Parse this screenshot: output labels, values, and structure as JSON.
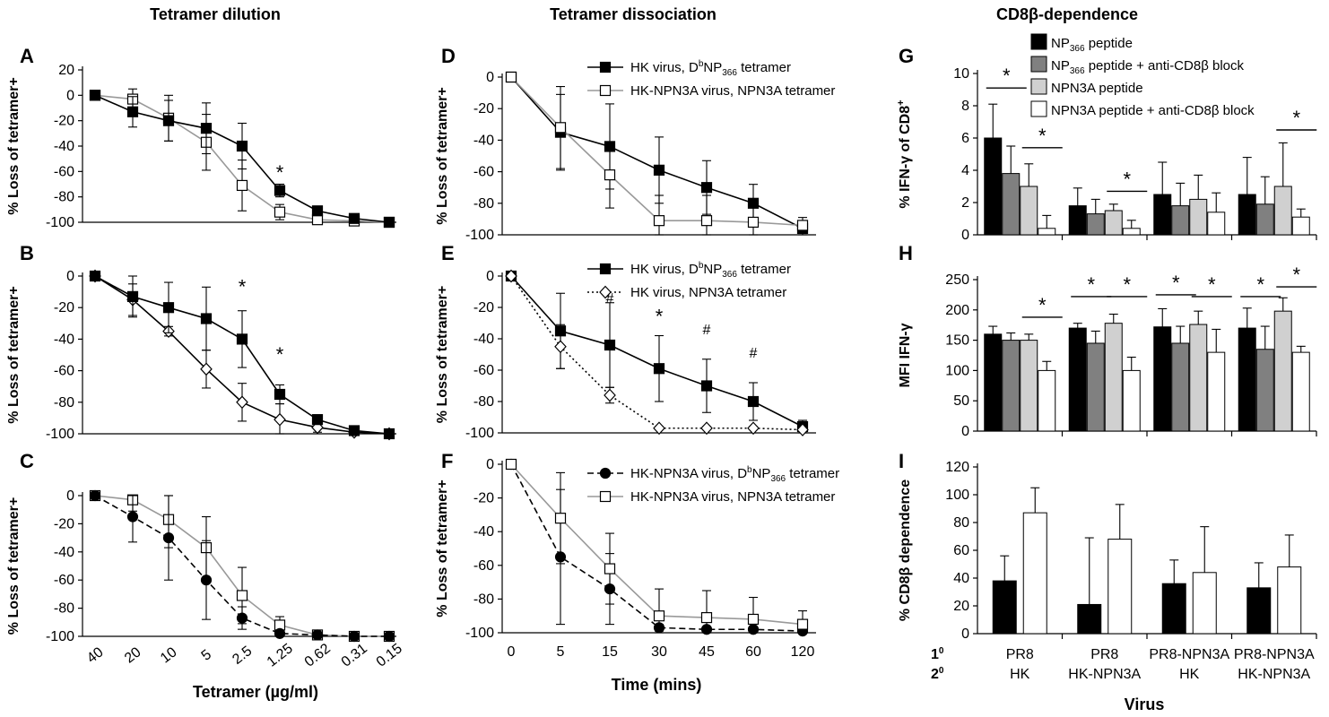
{
  "headers": {
    "tetramer_dilution": "Tetramer dilution",
    "tetramer_dissociation": "Tetramer dissociation",
    "cd8b_dependence": "CD8β-dependence"
  },
  "series_styles": {
    "black_square": {
      "fill": "#000000",
      "stroke": "#000000",
      "marker": "square",
      "line": "solid"
    },
    "white_square_grey": {
      "fill": "#ffffff",
      "stroke": "#000000",
      "marker": "square",
      "line": "solid",
      "line_color": "#999999"
    },
    "white_diamond": {
      "fill": "#ffffff",
      "stroke": "#000000",
      "marker": "diamond",
      "line": "solid"
    },
    "white_diamond_dotted": {
      "fill": "#ffffff",
      "stroke": "#000000",
      "marker": "diamond",
      "line": "dotted"
    },
    "black_circle_dashed": {
      "fill": "#000000",
      "stroke": "#000000",
      "marker": "circle",
      "line": "dashed"
    }
  },
  "chart_data": [
    {
      "id": "A",
      "type": "line",
      "panel_label": "A",
      "ylabel": "% Loss of tetramer+",
      "ylim": [
        -100,
        20
      ],
      "yticks": [
        20,
        0,
        -20,
        -40,
        -60,
        -80,
        -100
      ],
      "categories": [
        "40",
        "20",
        "10",
        "5",
        "2.5",
        "1.25",
        "0.62",
        "0.31",
        "0.15"
      ],
      "series": [
        {
          "style": "white_square_grey",
          "values": [
            0,
            -3,
            -18,
            -37,
            -71,
            -92,
            -98,
            -99,
            -100
          ],
          "err": [
            0,
            8,
            18,
            22,
            20,
            6,
            2,
            1,
            0
          ]
        },
        {
          "style": "black_square",
          "values": [
            0,
            -13,
            -20,
            -26,
            -40,
            -75,
            -91,
            -97,
            -100
          ],
          "err": [
            0,
            12,
            16,
            20,
            18,
            5,
            3,
            2,
            0
          ]
        }
      ],
      "annotations": [
        {
          "text": "*",
          "x_index": 5,
          "y": -66
        }
      ]
    },
    {
      "id": "B",
      "type": "line",
      "panel_label": "B",
      "ylabel": "% Loss of tetramer+",
      "ylim": [
        -100,
        0
      ],
      "yticks": [
        0,
        -20,
        -40,
        -60,
        -80,
        -100
      ],
      "categories": [
        "40",
        "20",
        "10",
        "5",
        "2.5",
        "1.25",
        "0.62",
        "0.31",
        "0.15"
      ],
      "series": [
        {
          "style": "white_diamond",
          "values": [
            0,
            -15,
            -35,
            -59,
            -80,
            -91,
            -96,
            -99,
            -100
          ],
          "err": [
            0,
            10,
            3,
            12,
            12,
            10,
            3,
            1,
            0
          ]
        },
        {
          "style": "black_square",
          "values": [
            0,
            -13,
            -20,
            -27,
            -40,
            -75,
            -91,
            -98,
            -100
          ],
          "err": [
            0,
            13,
            16,
            20,
            18,
            6,
            3,
            1,
            0
          ]
        }
      ],
      "annotations": [
        {
          "text": "*",
          "x_index": 4,
          "y": -11
        },
        {
          "text": "*",
          "x_index": 5,
          "y": -54
        }
      ]
    },
    {
      "id": "C",
      "type": "line",
      "panel_label": "C",
      "ylabel": "% Loss of tetramer+",
      "ylim": [
        -100,
        0
      ],
      "yticks": [
        0,
        -20,
        -40,
        -60,
        -80,
        -100
      ],
      "categories": [
        "40",
        "20",
        "10",
        "5",
        "2.5",
        "1.25",
        "0.62",
        "0.31",
        "0.15"
      ],
      "xlabel": "Tetramer (µg/ml)",
      "series": [
        {
          "style": "white_square_grey",
          "values": [
            0,
            -3,
            -17,
            -37,
            -71,
            -92,
            -99,
            -100,
            -100
          ],
          "err": [
            0,
            8,
            20,
            22,
            20,
            6,
            2,
            1,
            0
          ]
        },
        {
          "style": "black_circle_dashed",
          "values": [
            0,
            -15,
            -30,
            -60,
            -87,
            -98,
            -99,
            -100,
            -100
          ],
          "err": [
            0,
            18,
            30,
            28,
            8,
            2,
            1,
            0,
            0
          ]
        }
      ]
    },
    {
      "id": "D",
      "type": "line",
      "panel_label": "D",
      "ylabel": "% Loss of tetramer+",
      "ylim": [
        -100,
        0
      ],
      "yticks": [
        0,
        -20,
        -40,
        -60,
        -80,
        -100
      ],
      "categories": [
        "0",
        "5",
        "15",
        "30",
        "45",
        "60",
        "120"
      ],
      "series": [
        {
          "style": "black_square",
          "name": "HK virus, DbNP366 tetramer",
          "values": [
            0,
            -35,
            -44,
            -59,
            -70,
            -80,
            -96
          ],
          "err": [
            0,
            24,
            27,
            21,
            17,
            12,
            4
          ]
        },
        {
          "style": "white_square_grey",
          "name": "HK-NPN3A virus, NPN3A tetramer",
          "values": [
            0,
            -32,
            -62,
            -91,
            -91,
            -92,
            -94
          ],
          "err": [
            0,
            26,
            21,
            16,
            16,
            10,
            5
          ]
        }
      ],
      "legend": [
        {
          "style": "black_square",
          "pre": "HK virus, D",
          "sup": "b",
          "mid": "NP",
          "sub": "366",
          "post": " tetramer"
        },
        {
          "style": "white_square_grey",
          "pre": "HK-NPN3A virus, NPN3A tetramer"
        }
      ]
    },
    {
      "id": "E",
      "type": "line",
      "panel_label": "E",
      "ylabel": "% Loss of tetramer+",
      "ylim": [
        -100,
        0
      ],
      "yticks": [
        0,
        -20,
        -40,
        -60,
        -80,
        -100
      ],
      "categories": [
        "0",
        "5",
        "15",
        "30",
        "45",
        "60",
        "120"
      ],
      "series": [
        {
          "style": "black_square",
          "name": "HK virus, DbNP366 tetramer",
          "values": [
            0,
            -35,
            -44,
            -59,
            -70,
            -80,
            -96
          ],
          "err": [
            0,
            24,
            27,
            21,
            17,
            12,
            4
          ]
        },
        {
          "style": "white_diamond_dotted",
          "name": "HK virus, NPN3A tetramer",
          "values": [
            0,
            -45,
            -76,
            -97,
            -97,
            -97,
            -98
          ],
          "err": [
            0,
            14,
            5,
            1,
            1,
            1,
            1
          ]
        }
      ],
      "legend": [
        {
          "style": "black_square",
          "pre": "HK virus, D",
          "sup": "b",
          "mid": "NP",
          "sub": "366",
          "post": " tetramer"
        },
        {
          "style": "white_diamond_dotted",
          "pre": "HK virus, NPN3A tetramer"
        }
      ],
      "annotations": [
        {
          "text": "#",
          "x_index": 2,
          "y": -17
        },
        {
          "text": "*",
          "x_index": 3,
          "y": -30
        },
        {
          "text": "#",
          "x_index": 4,
          "y": -37
        },
        {
          "text": "#",
          "x_index": 5,
          "y": -52
        }
      ]
    },
    {
      "id": "F",
      "type": "line",
      "panel_label": "F",
      "ylabel": "% Loss of tetramer+",
      "ylim": [
        -100,
        0
      ],
      "yticks": [
        0,
        -20,
        -40,
        -60,
        -80,
        -100
      ],
      "categories": [
        "0",
        "5",
        "15",
        "30",
        "45",
        "60",
        "120"
      ],
      "xlabel": "Time (mins)",
      "series": [
        {
          "style": "black_circle_dashed",
          "name": "HK-NPN3A virus, DbNP366 tetramer",
          "values": [
            0,
            -55,
            -74,
            -97,
            -98,
            -98,
            -99
          ],
          "err": [
            0,
            40,
            21,
            2,
            1,
            1,
            1
          ]
        },
        {
          "style": "white_square_grey",
          "name": "HK-NPN3A virus, NPN3A tetramer",
          "values": [
            0,
            -32,
            -62,
            -90,
            -91,
            -92,
            -95
          ],
          "err": [
            0,
            27,
            21,
            16,
            16,
            13,
            8
          ]
        }
      ],
      "legend": [
        {
          "style": "black_circle_dashed",
          "pre": "HK-NPN3A virus, D",
          "sup": "b",
          "mid": "NP",
          "sub": "366",
          "post": " tetramer"
        },
        {
          "style": "white_square_grey",
          "pre": "HK-NPN3A virus, NPN3A tetramer"
        }
      ]
    },
    {
      "id": "G",
      "type": "bar",
      "panel_label": "G",
      "ylabel": "% IFN-γ of CD8+",
      "ylim": [
        0,
        10
      ],
      "yticks": [
        10,
        8,
        6,
        4,
        2,
        0
      ],
      "groups": 4,
      "series": [
        {
          "fill": "#000000",
          "values": [
            6.0,
            1.8,
            2.5,
            2.5
          ],
          "err": [
            2.1,
            1.1,
            2.0,
            2.3
          ]
        },
        {
          "fill": "#808080",
          "values": [
            3.8,
            1.3,
            1.8,
            1.9
          ],
          "err": [
            1.7,
            0.9,
            1.4,
            1.7
          ]
        },
        {
          "fill": "#d0d0d0",
          "values": [
            3.0,
            1.5,
            2.2,
            3.0
          ],
          "err": [
            1.4,
            0.4,
            1.5,
            2.7
          ]
        },
        {
          "fill": "#ffffff",
          "values": [
            0.4,
            0.4,
            1.4,
            1.1
          ],
          "err": [
            0.8,
            0.5,
            1.2,
            0.5
          ]
        }
      ],
      "legend": [
        {
          "fill": "#000000",
          "pre": "NP",
          "sub": "366",
          "post": "  peptide"
        },
        {
          "fill": "#808080",
          "pre": "NP",
          "sub": "366",
          "post": "  peptide + anti-CD8β block"
        },
        {
          "fill": "#d0d0d0",
          "pre": "NPN3A  peptide"
        },
        {
          "fill": "#ffffff",
          "pre": "NPN3A  peptide + anti-CD8β block"
        }
      ],
      "brackets": [
        {
          "group": 0,
          "from": 0,
          "to": 1,
          "y": 9.1
        },
        {
          "group": 0,
          "from": 2,
          "to": 3,
          "y": 5.4
        },
        {
          "group": 1,
          "from": 2,
          "to": 3,
          "y": 2.7
        },
        {
          "group": 3,
          "from": 2,
          "to": 3,
          "y": 6.5
        }
      ]
    },
    {
      "id": "H",
      "type": "bar",
      "panel_label": "H",
      "ylabel": "MFI IFN-γ",
      "ylim": [
        0,
        250
      ],
      "yticks": [
        250,
        200,
        150,
        100,
        50,
        0
      ],
      "groups": 4,
      "series": [
        {
          "fill": "#000000",
          "values": [
            160,
            170,
            172,
            170
          ],
          "err": [
            13,
            8,
            30,
            33
          ]
        },
        {
          "fill": "#808080",
          "values": [
            150,
            145,
            145,
            135
          ],
          "err": [
            12,
            20,
            28,
            38
          ]
        },
        {
          "fill": "#d0d0d0",
          "values": [
            150,
            178,
            176,
            198
          ],
          "err": [
            10,
            15,
            22,
            22
          ]
        },
        {
          "fill": "#ffffff",
          "values": [
            100,
            100,
            130,
            130
          ],
          "err": [
            15,
            22,
            38,
            10
          ]
        }
      ],
      "brackets": [
        {
          "group": 0,
          "from": 2,
          "to": 3,
          "y": 188
        },
        {
          "group": 1,
          "from": 0,
          "to": 1,
          "y": 222
        },
        {
          "group": 1,
          "from": 2,
          "to": 3,
          "y": 222
        },
        {
          "group": 2,
          "from": 0,
          "to": 1,
          "y": 225
        },
        {
          "group": 2,
          "from": 2,
          "to": 3,
          "y": 222
        },
        {
          "group": 3,
          "from": 0,
          "to": 1,
          "y": 222
        },
        {
          "group": 3,
          "from": 2,
          "to": 3,
          "y": 238
        }
      ]
    },
    {
      "id": "I",
      "type": "bar",
      "panel_label": "I",
      "ylabel": "% CD8β dependence",
      "ylim": [
        0,
        120
      ],
      "yticks": [
        120,
        100,
        80,
        60,
        40,
        20,
        0
      ],
      "groups": 4,
      "series": [
        {
          "fill": "#000000",
          "values": [
            38,
            21,
            36,
            33
          ],
          "err": [
            18,
            48,
            17,
            18
          ]
        },
        {
          "fill": "#ffffff",
          "values": [
            87,
            68,
            44,
            48
          ],
          "err": [
            18,
            25,
            33,
            23
          ]
        }
      ],
      "row_labels": [
        "1",
        "2"
      ],
      "row_sup": "0",
      "group_labels": [
        [
          "PR8",
          "HK"
        ],
        [
          "PR8",
          "HK-NPN3A"
        ],
        [
          "PR8-NPN3A",
          "HK"
        ],
        [
          "PR8-NPN3A",
          "HK-NPN3A"
        ]
      ],
      "xlabel": "Virus"
    }
  ]
}
